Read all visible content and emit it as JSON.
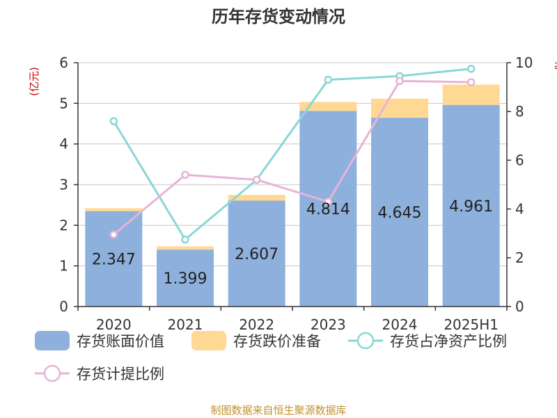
{
  "title": "历年存货变动情况",
  "source": "制图数据来自恒生聚源数据库",
  "colors": {
    "book": "#8eb0dc",
    "impair": "#ffd894",
    "ratio_net": "#8ad7d5",
    "ratio_impair": "#e6b4d6",
    "unit": "#cc0000",
    "source": "#c0922e"
  },
  "chart_data": {
    "type": "bar",
    "categories": [
      "2020",
      "2021",
      "2022",
      "2023",
      "2024",
      "2025H1"
    ],
    "y_left": {
      "label": "(亿元)",
      "ylim": [
        0,
        6
      ],
      "ticks": [
        "0",
        "1",
        "2",
        "3",
        "4",
        "5",
        "6"
      ]
    },
    "y_right": {
      "label": "%",
      "ylim": [
        0,
        10
      ],
      "ticks": [
        "0",
        "2",
        "4",
        "6",
        "8",
        "10"
      ]
    },
    "series": [
      {
        "name": "存货账面价值",
        "type": "bar",
        "axis": "left",
        "stack": "inv",
        "values": [
          2.347,
          1.399,
          2.607,
          4.814,
          4.645,
          4.961
        ],
        "labels": [
          "2.347",
          "1.399",
          "2.607",
          "4.814",
          "4.645",
          "4.961"
        ]
      },
      {
        "name": "存货跌价准备",
        "type": "bar",
        "axis": "left",
        "stack": "inv",
        "values": [
          0.07,
          0.08,
          0.14,
          0.22,
          0.47,
          0.5
        ]
      },
      {
        "name": "存货占净资产比例",
        "type": "line",
        "axis": "right",
        "values": [
          7.6,
          2.75,
          5.2,
          9.3,
          9.45,
          9.75
        ]
      },
      {
        "name": "存货计提比例",
        "type": "line",
        "axis": "right",
        "values": [
          2.95,
          5.4,
          5.2,
          4.3,
          9.25,
          9.2
        ]
      }
    ],
    "grid": true,
    "legend": "bottom"
  }
}
